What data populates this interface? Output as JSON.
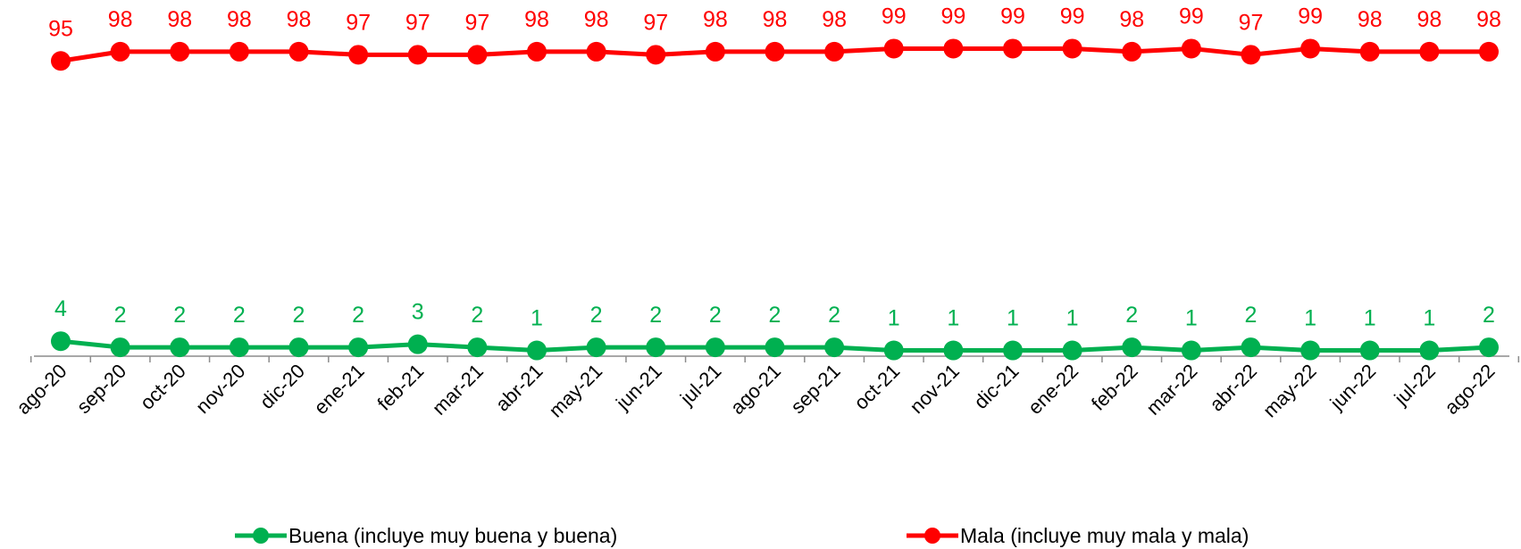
{
  "chart_data": {
    "type": "line",
    "title": "",
    "xlabel": "",
    "ylabel": "",
    "categories": [
      "ago-20",
      "sep-20",
      "oct-20",
      "nov-20",
      "dic-20",
      "ene-21",
      "feb-21",
      "mar-21",
      "abr-21",
      "may-21",
      "jun-21",
      "jul-21",
      "ago-21",
      "sep-21",
      "oct-21",
      "nov-21",
      "dic-21",
      "ene-22",
      "feb-22",
      "mar-22",
      "abr-22",
      "may-22",
      "jun-22",
      "jul-22",
      "ago-22"
    ],
    "ylim": [
      0,
      100
    ],
    "grid": false,
    "legend_position": "bottom",
    "series": [
      {
        "name": "Buena (incluye muy buena y buena)",
        "color": "#00B050",
        "values": [
          4,
          2,
          2,
          2,
          2,
          2,
          3,
          2,
          1,
          2,
          2,
          2,
          2,
          2,
          1,
          1,
          1,
          1,
          2,
          1,
          2,
          1,
          1,
          1,
          2
        ]
      },
      {
        "name": "Mala (incluye muy mala y mala)",
        "color": "#FF0000",
        "values": [
          95,
          98,
          98,
          98,
          98,
          97,
          97,
          97,
          98,
          98,
          97,
          98,
          98,
          98,
          99,
          99,
          99,
          99,
          98,
          99,
          97,
          99,
          98,
          98,
          98
        ]
      }
    ]
  }
}
